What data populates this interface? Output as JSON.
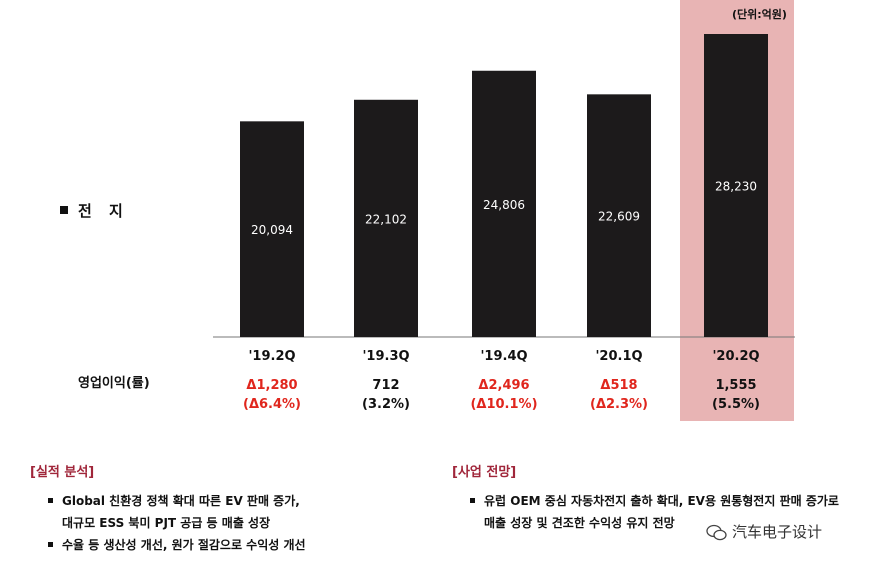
{
  "unit_note": "(단위:억원)",
  "segment_label": "전 지",
  "op_label": "영업이익(률)",
  "chart_data": {
    "type": "bar",
    "categories": [
      "'19.2Q",
      "'19.3Q",
      "'19.4Q",
      "'20.1Q",
      "'20.2Q"
    ],
    "values": [
      20094,
      22102,
      24806,
      22609,
      28230
    ],
    "value_labels": [
      "20,094",
      "22,102",
      "24,806",
      "22,609",
      "28,230"
    ],
    "ylim": [
      0,
      30000
    ],
    "highlighted_category": "'20.2Q",
    "colors": {
      "bar": "#1c1a1b",
      "highlight": "#e8b4b4",
      "negative": "#e0261d"
    }
  },
  "operating_profit": [
    {
      "amount": "Δ1,280",
      "margin": "(Δ6.4%)",
      "negative": true
    },
    {
      "amount": "712",
      "margin": "(3.2%)",
      "negative": false
    },
    {
      "amount": "Δ2,496",
      "margin": "(Δ10.1%)",
      "negative": true
    },
    {
      "amount": "Δ518",
      "margin": "(Δ2.3%)",
      "negative": true
    },
    {
      "amount": "1,555",
      "margin": "(5.5%)",
      "negative": false
    }
  ],
  "performance": {
    "title": "[실적 분석]",
    "bullets": [
      {
        "lines": [
          "Global 친환경 정책 확대 따른 EV 판매 증가,",
          "대규모 ESS 북미 PJT 공급 등 매출 성장"
        ]
      },
      {
        "lines": [
          "수율 등 생산성 개선, 원가 절감으로 수익성 개선"
        ]
      }
    ]
  },
  "outlook": {
    "title": "[사업 전망]",
    "bullets": [
      {
        "lines": [
          "유럽 OEM 중심 자동차전지 출하 확대, EV용 원통형전지 판매 증가로",
          "매출 성장 및 견조한 수익성 유지 전망"
        ]
      }
    ]
  },
  "watermark": "汽车电子设计"
}
